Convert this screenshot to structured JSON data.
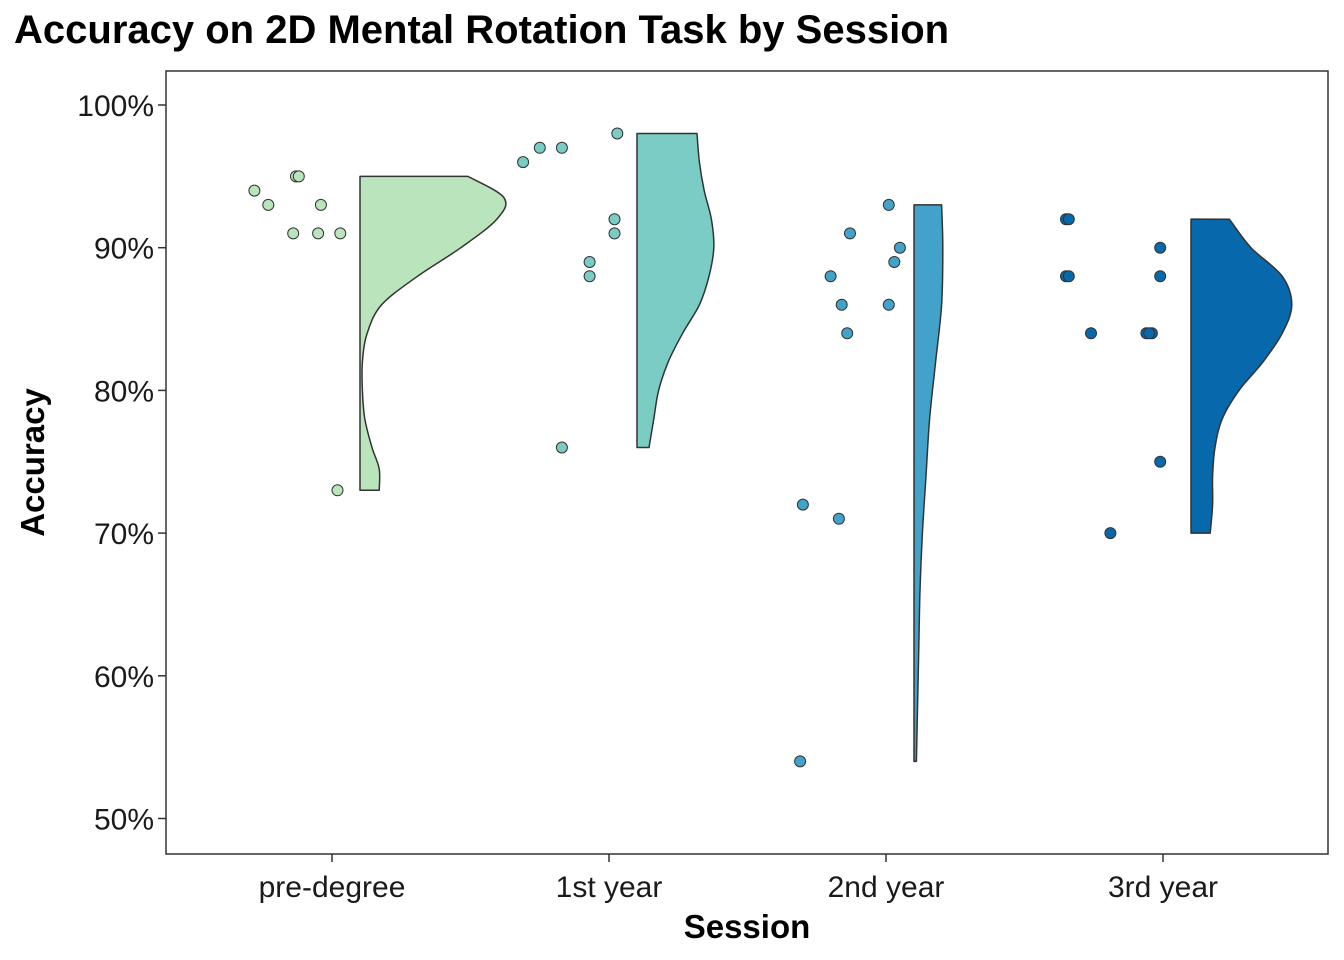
{
  "chart_data": {
    "type": "raincloud",
    "title": "Accuracy on 2D Mental Rotation Task by Session",
    "xlabel": "Session",
    "ylabel": "Accuracy",
    "categories": [
      "pre-degree",
      "1st year",
      "2nd year",
      "3rd year"
    ],
    "ylim": [
      0.475,
      1.025
    ],
    "yticks": [
      0.5,
      0.6,
      0.7,
      0.8,
      0.9,
      1.0
    ],
    "ytick_labels": [
      "50%",
      "60%",
      "70%",
      "80%",
      "90%",
      "100%"
    ],
    "grid": false,
    "legend": "none",
    "colors": [
      "#bae4bc",
      "#7bccc4",
      "#43a2ca",
      "#0868ac"
    ],
    "series": [
      {
        "category": "pre-degree",
        "points": [
          {
            "x_offset": -0.28,
            "y": 0.94
          },
          {
            "x_offset": -0.23,
            "y": 0.93
          },
          {
            "x_offset": -0.13,
            "y": 0.95
          },
          {
            "x_offset": -0.12,
            "y": 0.95
          },
          {
            "x_offset": -0.04,
            "y": 0.93
          },
          {
            "x_offset": -0.14,
            "y": 0.91
          },
          {
            "x_offset": -0.05,
            "y": 0.91
          },
          {
            "x_offset": 0.03,
            "y": 0.91
          },
          {
            "x_offset": 0.02,
            "y": 0.73
          }
        ],
        "violin_range": [
          0.73,
          0.95
        ],
        "density": [
          [
            0.73,
            0.08
          ],
          [
            0.745,
            0.08
          ],
          [
            0.76,
            0.05
          ],
          [
            0.78,
            0.02
          ],
          [
            0.8,
            0.01
          ],
          [
            0.82,
            0.01
          ],
          [
            0.84,
            0.03
          ],
          [
            0.86,
            0.09
          ],
          [
            0.88,
            0.24
          ],
          [
            0.9,
            0.42
          ],
          [
            0.92,
            0.57
          ],
          [
            0.935,
            0.6
          ],
          [
            0.95,
            0.45
          ]
        ]
      },
      {
        "category": "1st year",
        "points": [
          {
            "x_offset": -0.31,
            "y": 0.96
          },
          {
            "x_offset": -0.25,
            "y": 0.97
          },
          {
            "x_offset": -0.17,
            "y": 0.97
          },
          {
            "x_offset": 0.03,
            "y": 0.98
          },
          {
            "x_offset": 0.02,
            "y": 0.92
          },
          {
            "x_offset": 0.02,
            "y": 0.91
          },
          {
            "x_offset": -0.07,
            "y": 0.89
          },
          {
            "x_offset": -0.07,
            "y": 0.88
          },
          {
            "x_offset": -0.17,
            "y": 0.76
          }
        ],
        "violin_range": [
          0.76,
          0.98
        ],
        "density": [
          [
            0.76,
            0.05
          ],
          [
            0.78,
            0.07
          ],
          [
            0.8,
            0.09
          ],
          [
            0.82,
            0.13
          ],
          [
            0.84,
            0.19
          ],
          [
            0.86,
            0.26
          ],
          [
            0.88,
            0.3
          ],
          [
            0.9,
            0.32
          ],
          [
            0.92,
            0.31
          ],
          [
            0.94,
            0.28
          ],
          [
            0.96,
            0.26
          ],
          [
            0.98,
            0.25
          ]
        ]
      },
      {
        "category": "2nd year",
        "points": [
          {
            "x_offset": 0.01,
            "y": 0.93
          },
          {
            "x_offset": -0.13,
            "y": 0.91
          },
          {
            "x_offset": 0.05,
            "y": 0.9
          },
          {
            "x_offset": 0.03,
            "y": 0.89
          },
          {
            "x_offset": -0.2,
            "y": 0.88
          },
          {
            "x_offset": -0.16,
            "y": 0.86
          },
          {
            "x_offset": 0.01,
            "y": 0.86
          },
          {
            "x_offset": -0.14,
            "y": 0.84
          },
          {
            "x_offset": -0.3,
            "y": 0.72
          },
          {
            "x_offset": -0.17,
            "y": 0.71
          },
          {
            "x_offset": -0.31,
            "y": 0.54
          }
        ],
        "violin_range": [
          0.54,
          0.93
        ],
        "density": [
          [
            0.54,
            0.01
          ],
          [
            0.58,
            0.015
          ],
          [
            0.62,
            0.02
          ],
          [
            0.66,
            0.025
          ],
          [
            0.7,
            0.035
          ],
          [
            0.74,
            0.05
          ],
          [
            0.78,
            0.065
          ],
          [
            0.82,
            0.09
          ],
          [
            0.86,
            0.115
          ],
          [
            0.9,
            0.12
          ],
          [
            0.93,
            0.115
          ]
        ]
      },
      {
        "category": "3rd year",
        "points": [
          {
            "x_offset": -0.35,
            "y": 0.92
          },
          {
            "x_offset": -0.34,
            "y": 0.92
          },
          {
            "x_offset": -0.35,
            "y": 0.88
          },
          {
            "x_offset": -0.34,
            "y": 0.88
          },
          {
            "x_offset": -0.01,
            "y": 0.9
          },
          {
            "x_offset": -0.01,
            "y": 0.88
          },
          {
            "x_offset": -0.26,
            "y": 0.84
          },
          {
            "x_offset": -0.06,
            "y": 0.84
          },
          {
            "x_offset": -0.04,
            "y": 0.84
          },
          {
            "x_offset": -0.05,
            "y": 0.84
          },
          {
            "x_offset": -0.01,
            "y": 0.75
          },
          {
            "x_offset": -0.19,
            "y": 0.7
          }
        ],
        "violin_range": [
          0.7,
          0.92
        ],
        "density": [
          [
            0.7,
            0.08
          ],
          [
            0.72,
            0.09
          ],
          [
            0.74,
            0.09
          ],
          [
            0.76,
            0.1
          ],
          [
            0.78,
            0.13
          ],
          [
            0.8,
            0.2
          ],
          [
            0.82,
            0.3
          ],
          [
            0.84,
            0.38
          ],
          [
            0.86,
            0.42
          ],
          [
            0.88,
            0.38
          ],
          [
            0.9,
            0.25
          ],
          [
            0.92,
            0.16
          ]
        ]
      }
    ]
  }
}
